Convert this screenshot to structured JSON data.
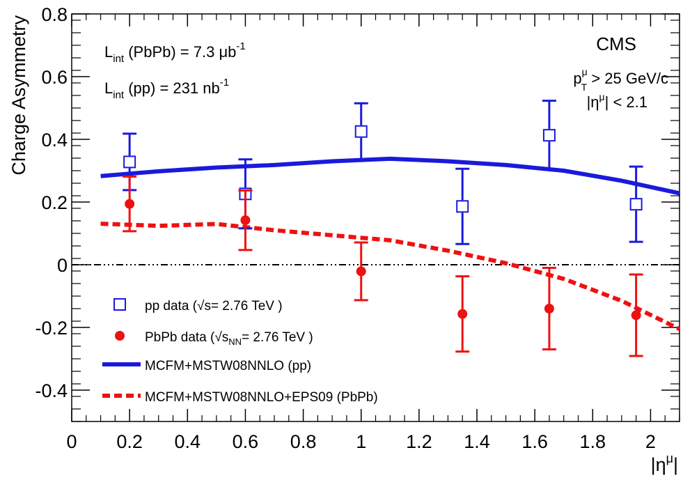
{
  "chart_data": {
    "type": "scatter",
    "xlabel": "|η",
    "xlabel_sup": "μ",
    "xlabel_end": "|",
    "ylabel": "Charge Asymmetry",
    "xlim": [
      0,
      2.1
    ],
    "ylim": [
      -0.5,
      0.8
    ],
    "x_ticks": [
      0,
      0.2,
      0.4,
      0.6,
      0.8,
      1,
      1.2,
      1.4,
      1.6,
      1.8,
      2
    ],
    "x_tick_labels": [
      "0",
      "0.2",
      "0.4",
      "0.6",
      "0.8",
      "1",
      "1.2",
      "1.4",
      "1.6",
      "1.8",
      "2"
    ],
    "y_ticks": [
      -0.4,
      -0.2,
      0,
      0.2,
      0.4,
      0.6,
      0.8
    ],
    "y_tick_labels": [
      "-0.4",
      "-0.2",
      "0",
      "0.2",
      "0.4",
      "0.6",
      "0.8"
    ],
    "grid": false,
    "zero_line": true,
    "series": [
      {
        "name": "pp data (√s= 2.76 TeV )",
        "kind": "points",
        "marker": "open-square",
        "color": "#1a1adc",
        "x": [
          0.2,
          0.6,
          1.0,
          1.35,
          1.65,
          1.95
        ],
        "y": [
          0.328,
          0.226,
          0.425,
          0.186,
          0.413,
          0.193
        ],
        "err_low": [
          0.09,
          0.11,
          0.09,
          0.12,
          0.11,
          0.12
        ],
        "err_high": [
          0.09,
          0.11,
          0.09,
          0.12,
          0.11,
          0.12
        ]
      },
      {
        "name": "PbPb data (√sNN= 2.76 TeV )",
        "kind": "points",
        "marker": "filled-circle",
        "color": "#ee1111",
        "x": [
          0.2,
          0.6,
          1.0,
          1.35,
          1.65,
          1.95
        ],
        "y": [
          0.194,
          0.142,
          -0.021,
          -0.157,
          -0.14,
          -0.161
        ],
        "err_low": [
          0.087,
          0.095,
          0.092,
          0.12,
          0.13,
          0.13
        ],
        "err_high": [
          0.087,
          0.095,
          0.092,
          0.12,
          0.13,
          0.13
        ]
      },
      {
        "name": "MCFM+MSTW08NNLO (pp)",
        "kind": "line",
        "style": "solid",
        "color": "#1a1adc",
        "x": [
          0.1,
          0.3,
          0.5,
          0.7,
          0.9,
          1.1,
          1.3,
          1.5,
          1.7,
          1.9,
          2.1
        ],
        "y": [
          0.283,
          0.298,
          0.31,
          0.318,
          0.33,
          0.338,
          0.33,
          0.318,
          0.3,
          0.268,
          0.228
        ]
      },
      {
        "name": "MCFM+MSTW08NNLO+EPS09 (PbPb)",
        "kind": "line",
        "style": "dashed",
        "color": "#ee1111",
        "x": [
          0.1,
          0.3,
          0.5,
          0.7,
          0.9,
          1.1,
          1.3,
          1.5,
          1.7,
          1.9,
          2.1
        ],
        "y": [
          0.131,
          0.124,
          0.13,
          0.11,
          0.094,
          0.078,
          0.045,
          0.005,
          -0.045,
          -0.115,
          -0.205
        ]
      }
    ],
    "annotations": {
      "lumi_pbpb": {
        "main": "L",
        "sub": "int",
        "mid": " (PbPb) = 7.3 μb",
        "sup": "-1"
      },
      "lumi_pp": {
        "main": "L",
        "sub": "int",
        "mid": " (pp) = 231 nb",
        "sup": "-1"
      },
      "experiment": "CMS",
      "pt_cut": {
        "main": "p",
        "sup": "μ",
        "sub": "T",
        "rest": " > 25 GeV/c"
      },
      "eta_cut": {
        "pre": "|η",
        "sup": "μ",
        "rest": "| < 2.1"
      }
    },
    "legend": {
      "placement": "bottom-left",
      "entries": [
        {
          "series": 0,
          "parts": [
            "pp data (",
            "s",
            "= 2.76 TeV )"
          ],
          "sub": ""
        },
        {
          "series": 1,
          "parts": [
            "PbPb data (",
            "s",
            "= 2.76 TeV )"
          ],
          "sub": "NN"
        },
        {
          "series": 2,
          "parts": [
            "MCFM+MSTW08NNLO (pp)"
          ],
          "sub": ""
        },
        {
          "series": 3,
          "parts": [
            "MCFM+MSTW08NNLO+EPS09 (PbPb)"
          ],
          "sub": ""
        }
      ]
    }
  }
}
